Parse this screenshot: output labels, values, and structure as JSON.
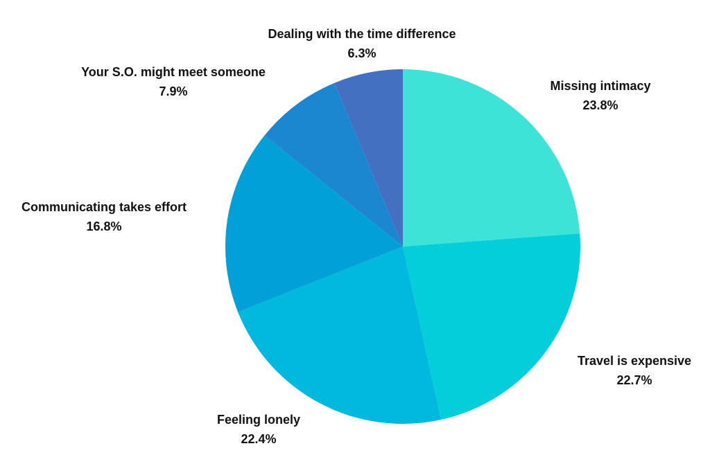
{
  "chart_data": {
    "type": "pie",
    "title": "",
    "slices": [
      {
        "label": "Missing intimacy",
        "value": 23.8,
        "value_label": "23.8%",
        "color": "#3de3d6"
      },
      {
        "label": "Travel is expensive",
        "value": 22.7,
        "value_label": "22.7%",
        "color": "#03ced9"
      },
      {
        "label": "Feeling lonely",
        "value": 22.4,
        "value_label": "22.4%",
        "color": "#01b8df"
      },
      {
        "label": "Communicating takes effort",
        "value": 16.8,
        "value_label": "16.8%",
        "color": "#02a0d9"
      },
      {
        "label": "Your S.O. might meet someone",
        "value": 7.9,
        "value_label": "7.9%",
        "color": "#1a87d0"
      },
      {
        "label": "Dealing with the time difference",
        "value": 6.3,
        "value_label": "6.3%",
        "color": "#4370c1"
      }
    ],
    "start_angle": "12 o'clock",
    "direction": "clockwise",
    "legend": "none",
    "labels": "outside"
  }
}
